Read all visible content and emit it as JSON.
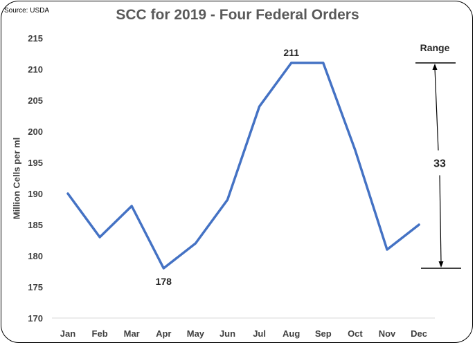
{
  "source": "Source: USDA",
  "chart_data": {
    "type": "line",
    "title": "SCC for 2019 - Four Federal Orders",
    "xlabel": "",
    "ylabel": "Million Cells per ml",
    "categories": [
      "Jan",
      "Feb",
      "Mar",
      "Apr",
      "May",
      "Jun",
      "Jul",
      "Aug",
      "Sep",
      "Oct",
      "Nov",
      "Dec"
    ],
    "series": [
      {
        "values": [
          190,
          183,
          188,
          178,
          182,
          189,
          204,
          211,
          211,
          197,
          181,
          185
        ],
        "color": "#4472C4"
      }
    ],
    "ylim": [
      170,
      215
    ],
    "yticks": [
      170,
      175,
      180,
      185,
      190,
      195,
      200,
      205,
      210,
      215
    ],
    "grid": false,
    "legend": "none",
    "data_labels": [
      {
        "category": "Apr",
        "text": "178",
        "position": "below"
      },
      {
        "category": "Aug",
        "text": "211",
        "position": "above"
      }
    ],
    "annotations": {
      "range_title": "Range",
      "range_value": "33",
      "range_top": 211,
      "range_bottom": 178
    }
  }
}
